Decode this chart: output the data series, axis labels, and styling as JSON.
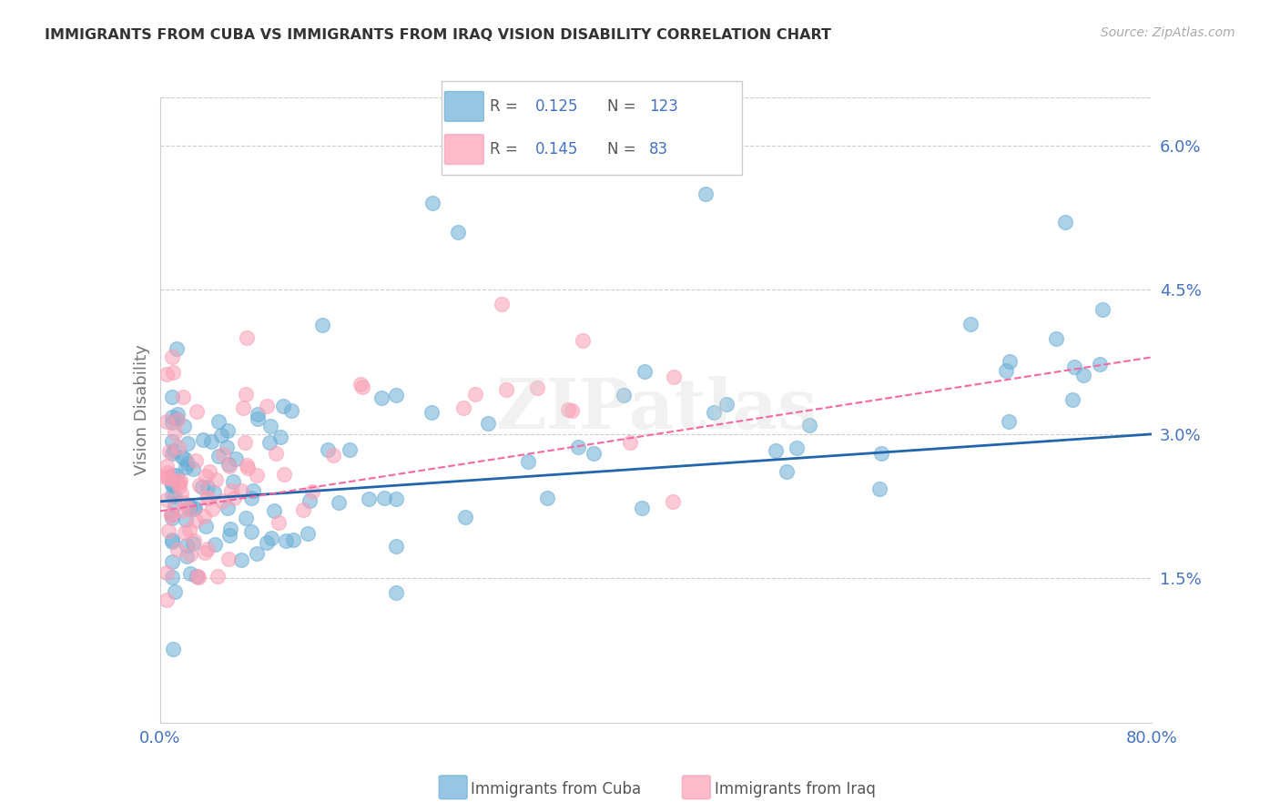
{
  "title": "IMMIGRANTS FROM CUBA VS IMMIGRANTS FROM IRAQ VISION DISABILITY CORRELATION CHART",
  "source": "Source: ZipAtlas.com",
  "xlabel_cuba": "Immigrants from Cuba",
  "xlabel_iraq": "Immigrants from Iraq",
  "ylabel": "Vision Disability",
  "xlim": [
    0.0,
    0.8
  ],
  "ylim": [
    0.0,
    0.065
  ],
  "yticks": [
    0.015,
    0.03,
    0.045,
    0.06
  ],
  "ytick_labels": [
    "1.5%",
    "3.0%",
    "4.5%",
    "6.0%"
  ],
  "xticks": [
    0.0,
    0.2,
    0.4,
    0.6,
    0.8
  ],
  "xtick_labels": [
    "0.0%",
    "",
    "",
    "",
    "80.0%"
  ],
  "legend_cuba_R": "0.125",
  "legend_cuba_N": "123",
  "legend_iraq_R": "0.145",
  "legend_iraq_N": "83",
  "color_cuba": "#6baed6",
  "color_iraq": "#fa9fb5",
  "color_trendline_cuba": "#2166ac",
  "color_trendline_iraq": "#f768a1",
  "watermark": "ZIPatlas",
  "background_color": "#ffffff",
  "grid_color": "#cccccc",
  "title_color": "#333333",
  "blue_label_color": "#4472c4",
  "cuba_trend_y0": 0.023,
  "cuba_trend_y1": 0.03,
  "iraq_trend_y0": 0.022,
  "iraq_trend_y1": 0.038
}
